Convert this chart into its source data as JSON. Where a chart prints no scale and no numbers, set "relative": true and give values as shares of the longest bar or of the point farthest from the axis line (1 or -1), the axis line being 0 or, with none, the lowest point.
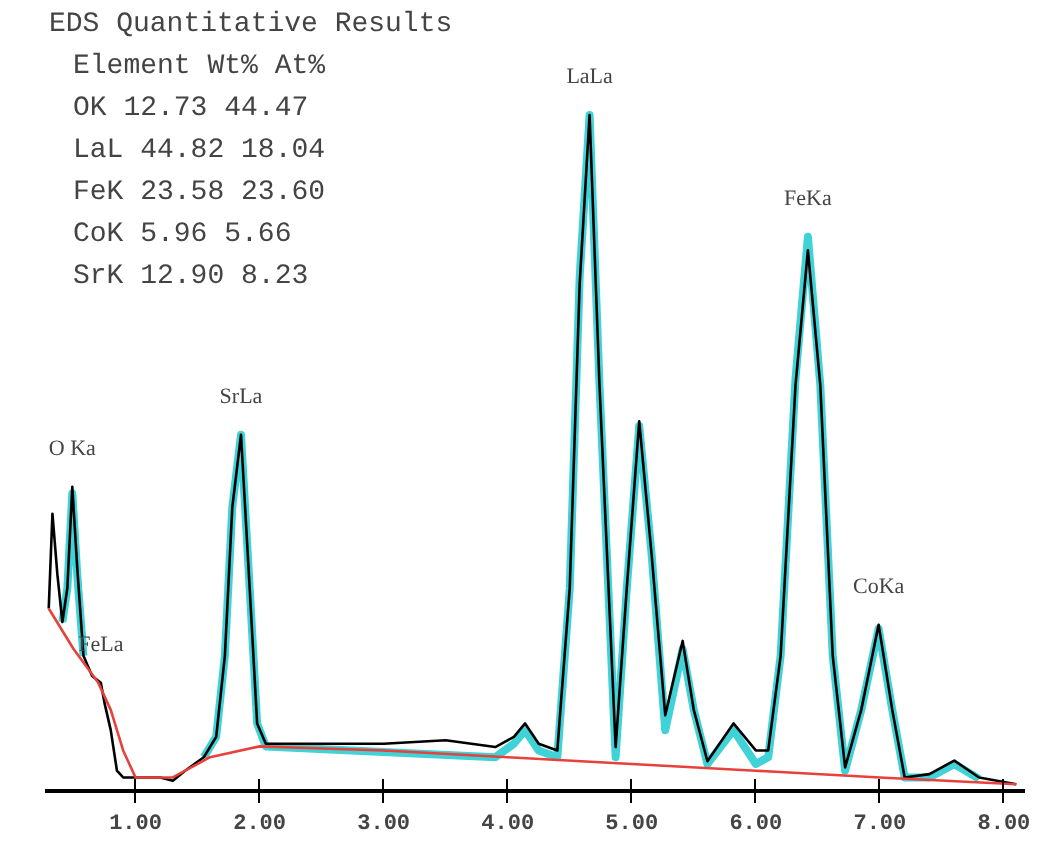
{
  "chart_data": {
    "type": "line",
    "relative": true,
    "title": "EDS Quantitative Results",
    "xlim": [
      0.27,
      8.17
    ],
    "xticks": [
      {
        "value": 1,
        "label": "1.00"
      },
      {
        "value": 2,
        "label": "2.00"
      },
      {
        "value": 3,
        "label": "3.00"
      },
      {
        "value": 4,
        "label": "4.00"
      },
      {
        "value": 5,
        "label": "5.00"
      },
      {
        "value": 6,
        "label": "6.00"
      },
      {
        "value": 7,
        "label": "7.00"
      },
      {
        "value": 8,
        "label": "8.00"
      }
    ],
    "grid": false,
    "series": [
      {
        "color": "#000000",
        "x": [
          0.3,
          0.33,
          0.37,
          0.41,
          0.45,
          0.49,
          0.53,
          0.58,
          0.65,
          0.72,
          0.75,
          0.8,
          0.85,
          0.9,
          1.0,
          1.2,
          1.3,
          1.4,
          1.55,
          1.65,
          1.72,
          1.78,
          1.85,
          1.92,
          1.98,
          2.05,
          2.5,
          3.0,
          3.5,
          3.9,
          4.05,
          4.14,
          4.25,
          4.4,
          4.5,
          4.58,
          4.66,
          4.74,
          4.87,
          4.96,
          5.06,
          5.16,
          5.27,
          5.41,
          5.5,
          5.61,
          5.82,
          6.0,
          6.1,
          6.2,
          6.32,
          6.42,
          6.52,
          6.62,
          6.72,
          6.85,
          6.99,
          7.1,
          7.2,
          7.4,
          7.6,
          7.8,
          8.1
        ],
        "values": [
          0.27,
          0.41,
          0.32,
          0.25,
          0.3,
          0.45,
          0.33,
          0.2,
          0.17,
          0.16,
          0.13,
          0.09,
          0.03,
          0.02,
          0.02,
          0.02,
          0.015,
          0.03,
          0.05,
          0.08,
          0.2,
          0.42,
          0.527,
          0.3,
          0.1,
          0.07,
          0.07,
          0.07,
          0.075,
          0.065,
          0.08,
          0.1,
          0.07,
          0.06,
          0.3,
          0.75,
          1.0,
          0.6,
          0.065,
          0.3,
          0.547,
          0.35,
          0.112,
          0.222,
          0.12,
          0.044,
          0.1,
          0.06,
          0.06,
          0.2,
          0.6,
          0.8,
          0.6,
          0.2,
          0.035,
          0.12,
          0.246,
          0.12,
          0.02,
          0.025,
          0.045,
          0.02,
          0.01
        ]
      },
      {
        "color": "#3fd3d8",
        "x": [
          0.41,
          0.45,
          0.49,
          0.53,
          0.58,
          1.0,
          1.55,
          1.65,
          1.72,
          1.78,
          1.85,
          1.92,
          1.98,
          2.05,
          3.9,
          4.05,
          4.14,
          4.25,
          4.4,
          4.5,
          4.58,
          4.66,
          4.74,
          4.87,
          4.96,
          5.06,
          5.16,
          5.27,
          5.41,
          5.5,
          5.61,
          5.82,
          6.0,
          6.1,
          6.2,
          6.32,
          6.42,
          6.52,
          6.62,
          6.72,
          6.85,
          6.99,
          7.1,
          7.2,
          7.4,
          7.6,
          7.8
        ],
        "values": [
          0.25,
          0.3,
          0.44,
          0.32,
          0.2,
          null,
          0.05,
          0.08,
          0.2,
          0.42,
          0.527,
          0.3,
          0.1,
          0.066,
          0.05,
          0.07,
          0.09,
          0.06,
          0.05,
          0.3,
          0.76,
          1.0,
          0.6,
          0.05,
          0.3,
          0.54,
          0.35,
          0.09,
          0.21,
          0.12,
          0.04,
          0.09,
          0.04,
          0.05,
          0.2,
          0.61,
          0.82,
          0.6,
          0.2,
          0.03,
          0.12,
          0.24,
          0.12,
          0.02,
          0.02,
          0.04,
          0.018
        ]
      },
      {
        "color": "#e8403a",
        "x": [
          0.3,
          0.5,
          0.7,
          0.8,
          0.9,
          1.0,
          1.3,
          1.6,
          2.0,
          3.0,
          4.0,
          5.0,
          6.0,
          7.0,
          8.1
        ],
        "values": [
          0.27,
          0.21,
          0.16,
          0.12,
          0.06,
          0.02,
          0.02,
          0.05,
          0.066,
          0.06,
          0.05,
          0.04,
          0.03,
          0.02,
          0.01
        ]
      }
    ],
    "annotations": [
      "Element  Wt%   At%",
      "     OK  12.73 44.47",
      "    LaL  44.82 18.04",
      "    FeK  23.58 23.60",
      "    CoK   5.96  5.66",
      "    SrK  12.90  8.23",
      {
        "text": "O Ka",
        "x": 0.49,
        "y": 0.45
      },
      {
        "text": "FeLa",
        "x": 0.72,
        "y": 0.16
      },
      {
        "text": "SrLa",
        "x": 1.85,
        "y": 0.527
      },
      {
        "text": "LaLa",
        "x": 4.66,
        "y": 1.0
      },
      {
        "text": "FeKa",
        "x": 6.42,
        "y": 0.82
      },
      {
        "text": "CoKa",
        "x": 6.99,
        "y": 0.246
      }
    ]
  }
}
